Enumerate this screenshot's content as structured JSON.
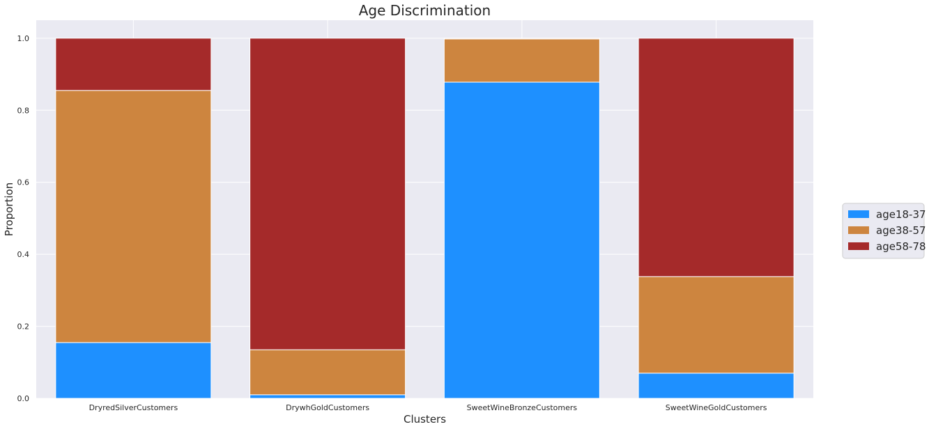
{
  "chart_data": {
    "type": "bar",
    "stacked": true,
    "title": "Age Discrimination",
    "xlabel": "Clusters",
    "ylabel": "Proportion",
    "ylim": [
      0,
      1.05
    ],
    "yticks": [
      "0.0",
      "0.2",
      "0.4",
      "0.6",
      "0.8",
      "1.0"
    ],
    "grid": true,
    "legend_position": "right",
    "categories": [
      "DryredSilverCustomers",
      "DrywhGoldCustomers",
      "SweetWineBronzeCustomers",
      "SweetWineGoldCustomers"
    ],
    "series": [
      {
        "name": "age18-37",
        "color": "#1e90ff",
        "values": [
          0.155,
          0.01,
          0.878,
          0.07
        ]
      },
      {
        "name": "age38-57",
        "color": "#cd853f",
        "values": [
          0.7,
          0.125,
          0.12,
          0.268
        ]
      },
      {
        "name": "age58-78",
        "color": "#a52a2a",
        "values": [
          0.145,
          0.865,
          0.002,
          0.662
        ]
      }
    ],
    "background_color": "#eaeaf2",
    "grid_color": "#ffffff"
  }
}
